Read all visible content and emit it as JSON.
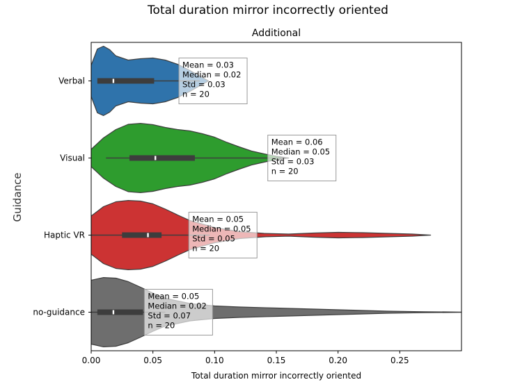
{
  "chart_data": {
    "type": "violin",
    "title": "Total duration mirror incorrectly oriented",
    "subtitle": "Additional",
    "xlabel": "Total duration mirror incorrectly oriented",
    "ylabel": "Guidance",
    "xlim": [
      0.0,
      0.3
    ],
    "xticks": [
      "0.00",
      "0.05",
      "0.10",
      "0.15",
      "0.20",
      "0.25"
    ],
    "orientation": "horizontal",
    "groups": [
      {
        "name": "Verbal",
        "color": "#2f73ab",
        "whisker": [
          0.005,
          0.088
        ],
        "quartiles": [
          0.005,
          0.051
        ],
        "median": 0.018,
        "density_x": [
          0.0,
          0.005,
          0.01,
          0.015,
          0.02,
          0.03,
          0.04,
          0.05,
          0.06,
          0.07,
          0.08,
          0.09,
          0.095
        ],
        "density_w": [
          0.45,
          0.92,
          1.0,
          0.9,
          0.72,
          0.6,
          0.64,
          0.66,
          0.6,
          0.48,
          0.3,
          0.1,
          0.0
        ],
        "stats": [
          "Mean = 0.03",
          "Median = 0.02",
          "Std = 0.03",
          "n = 20"
        ]
      },
      {
        "name": "Visual",
        "color": "#2e9c2e",
        "whisker": [
          0.012,
          0.16
        ],
        "quartiles": [
          0.031,
          0.084
        ],
        "median": 0.052,
        "density_x": [
          0.0,
          0.01,
          0.02,
          0.03,
          0.04,
          0.05,
          0.06,
          0.07,
          0.08,
          0.09,
          0.1,
          0.11,
          0.12,
          0.13,
          0.14,
          0.15,
          0.16
        ],
        "density_w": [
          0.25,
          0.58,
          0.82,
          0.97,
          1.0,
          0.96,
          0.88,
          0.82,
          0.78,
          0.7,
          0.6,
          0.45,
          0.32,
          0.2,
          0.12,
          0.05,
          0.0
        ],
        "stats": [
          "Mean = 0.06",
          "Median = 0.05",
          "Std = 0.03",
          "n = 20"
        ]
      },
      {
        "name": "Haptic VR",
        "color": "#cc3333",
        "whisker": [
          0.0,
          0.096
        ],
        "quartiles": [
          0.025,
          0.057
        ],
        "median": 0.046,
        "density_x": [
          0.0,
          0.01,
          0.02,
          0.03,
          0.04,
          0.05,
          0.06,
          0.07,
          0.08,
          0.1,
          0.12,
          0.14,
          0.16,
          0.18,
          0.2,
          0.22,
          0.24,
          0.26,
          0.275
        ],
        "density_w": [
          0.55,
          0.82,
          0.96,
          1.0,
          0.98,
          0.9,
          0.75,
          0.58,
          0.42,
          0.22,
          0.1,
          0.05,
          0.03,
          0.06,
          0.08,
          0.07,
          0.05,
          0.03,
          0.0
        ],
        "stats": [
          "Mean = 0.05",
          "Median = 0.05",
          "Std = 0.05",
          "n = 20"
        ]
      },
      {
        "name": "no-guidance",
        "color": "#6e6e6e",
        "whisker": [
          0.0,
          0.06
        ],
        "quartiles": [
          0.005,
          0.042
        ],
        "median": 0.018,
        "density_x": [
          0.0,
          0.01,
          0.02,
          0.03,
          0.04,
          0.05,
          0.06,
          0.08,
          0.1,
          0.12,
          0.15,
          0.18,
          0.21,
          0.24,
          0.27,
          0.3
        ],
        "density_w": [
          0.92,
          1.0,
          0.98,
          0.88,
          0.72,
          0.55,
          0.4,
          0.25,
          0.18,
          0.15,
          0.12,
          0.09,
          0.06,
          0.03,
          0.015,
          0.005
        ],
        "stats": [
          "Mean = 0.05",
          "Median = 0.02",
          "Std = 0.07",
          "n = 20"
        ]
      }
    ]
  }
}
